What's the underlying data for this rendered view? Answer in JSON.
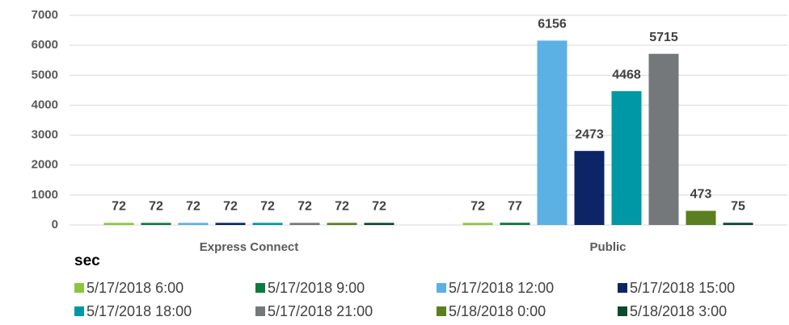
{
  "chart_data": {
    "type": "bar",
    "categories": [
      "Express Connect",
      "Public"
    ],
    "y_axis_label": "sec",
    "ylim": [
      0,
      7000
    ],
    "yticks": [
      0,
      1000,
      2000,
      3000,
      4000,
      5000,
      6000,
      7000
    ],
    "grid": true,
    "legend": "bottom",
    "series": [
      {
        "name": "5/17/2018 6:00",
        "color": "#8cc63e",
        "values": [
          72,
          72
        ]
      },
      {
        "name": "5/17/2018 9:00",
        "color": "#0e7a3c",
        "values": [
          72,
          77
        ]
      },
      {
        "name": "5/17/2018 12:00",
        "color": "#5cb1e4",
        "values": [
          72,
          6156
        ]
      },
      {
        "name": "5/17/2018 15:00",
        "color": "#0c2566",
        "values": [
          72,
          2473
        ]
      },
      {
        "name": "5/17/2018 18:00",
        "color": "#0098a6",
        "values": [
          72,
          4468
        ]
      },
      {
        "name": "5/17/2018 21:00",
        "color": "#75787b",
        "values": [
          72,
          5715
        ]
      },
      {
        "name": "5/18/2018 0:00",
        "color": "#5a7f1f",
        "values": [
          72,
          473
        ]
      },
      {
        "name": "5/18/2018 3:00",
        "color": "#0b4a2c",
        "values": [
          72,
          75
        ]
      }
    ]
  }
}
